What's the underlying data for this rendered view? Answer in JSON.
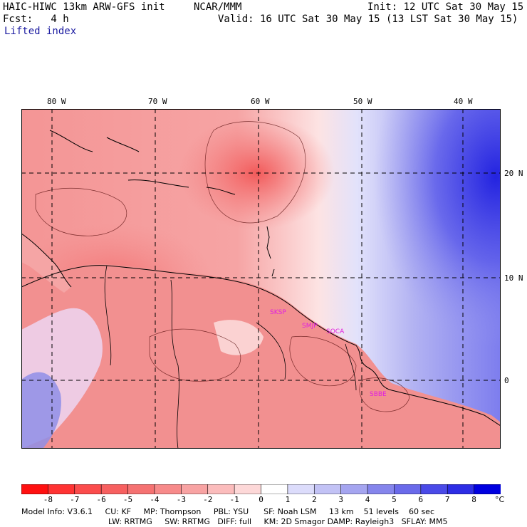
{
  "header": {
    "model_title": "HAIC-HIWC 13km ARW-GFS init",
    "org": "NCAR/MMM",
    "init": "Init: 12 UTC Sat 30 May 15",
    "fcst": "Fcst:   4 h",
    "valid": "Valid: 16 UTC Sat 30 May 15 (13 LST Sat 30 May 15)",
    "field": "Lifted index"
  },
  "map": {
    "lon_labels": [
      "80 W",
      "70 W",
      "60 W",
      "50 W",
      "40 W"
    ],
    "lat_labels": [
      "20 N",
      "10 N",
      "0"
    ],
    "stations": [
      "SKSP",
      "SMJP",
      "SOCA",
      "SBBE"
    ],
    "colors": {
      "ocean_caribbean": "#f7a9a9",
      "atlantic_east": "#8f8ff0",
      "land": "#f19090"
    }
  },
  "colorbar": {
    "ticks": [
      "-8",
      "-7",
      "-6",
      "-5",
      "-4",
      "-3",
      "-2",
      "-1",
      "0",
      "1",
      "2",
      "3",
      "4",
      "5",
      "6",
      "7",
      "8"
    ],
    "unit": "°C",
    "colors": [
      "#ff1010",
      "#ff3333",
      "#fb4c4c",
      "#f76060",
      "#f57272",
      "#f78a8a",
      "#f8a3a3",
      "#fbbcbc",
      "#fdd8d8",
      "#ffffff",
      "#dcdcfb",
      "#c2c2f5",
      "#a5a5f0",
      "#8585ec",
      "#6a6aea",
      "#4a4ae8",
      "#2d2de5",
      "#0000e0"
    ]
  },
  "footer": {
    "line1": "Model Info: V3.6.1     CU: KF     MP: Thompson     PBL: YSU      SF: Noah LSM     13 km    51 levels    60 sec",
    "line2": "LW: RRTMG     SW: RRTMG   DIFF: full     KM: 2D Smagor DAMP: Rayleigh3   SFLAY: MM5"
  }
}
